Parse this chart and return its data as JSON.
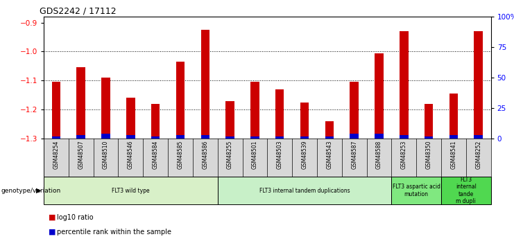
{
  "title": "GDS2242 / 17112",
  "samples": [
    "GSM48254",
    "GSM48507",
    "GSM48510",
    "GSM48546",
    "GSM48584",
    "GSM48585",
    "GSM48586",
    "GSM48255",
    "GSM48501",
    "GSM48503",
    "GSM48539",
    "GSM48543",
    "GSM48587",
    "GSM48588",
    "GSM48253",
    "GSM48350",
    "GSM48541",
    "GSM48252"
  ],
  "log10_ratio": [
    -1.105,
    -1.055,
    -1.09,
    -1.16,
    -1.18,
    -1.035,
    -0.925,
    -1.17,
    -1.105,
    -1.13,
    -1.175,
    -1.24,
    -1.105,
    -1.005,
    -0.93,
    -1.18,
    -1.145,
    -0.93
  ],
  "percentile_rank": [
    2,
    3,
    4,
    3,
    2,
    3,
    3,
    2,
    2,
    2,
    2,
    2,
    4,
    4,
    3,
    2,
    3,
    3
  ],
  "ylim_left": [
    -1.3,
    -0.88
  ],
  "ylim_right": [
    0,
    100
  ],
  "yticks_left": [
    -1.3,
    -1.2,
    -1.1,
    -1.0,
    -0.9
  ],
  "yticks_right": [
    0,
    25,
    50,
    75,
    100
  ],
  "ytick_labels_right": [
    "0",
    "25",
    "50",
    "75",
    "100%"
  ],
  "bar_color_red": "#cc0000",
  "bar_color_blue": "#0000cc",
  "groups": [
    {
      "label": "FLT3 wild type",
      "start": 0,
      "end": 6,
      "color": "#d8f0c8"
    },
    {
      "label": "FLT3 internal tandem duplications",
      "start": 7,
      "end": 13,
      "color": "#c8f0c8"
    },
    {
      "label": "FLT3 aspartic acid\nmutation",
      "start": 14,
      "end": 15,
      "color": "#80e880"
    },
    {
      "label": "FLT3\ninternal\ntande\nm dupli",
      "start": 16,
      "end": 17,
      "color": "#50d850"
    }
  ],
  "legend_label_red": "log10 ratio",
  "legend_label_blue": "percentile rank within the sample",
  "genotype_label": "genotype/variation",
  "bar_width": 0.35
}
